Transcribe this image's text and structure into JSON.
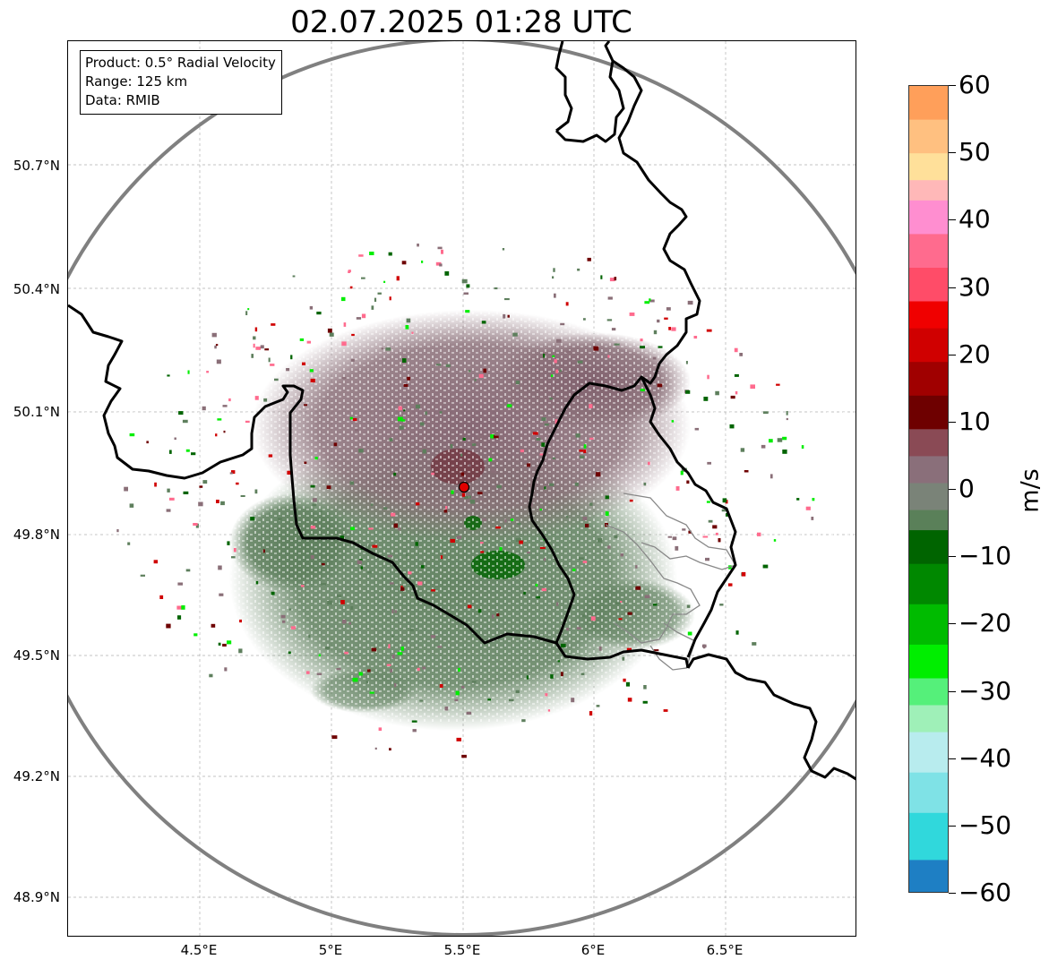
{
  "title": "02.07.2025 01:28 UTC",
  "info": {
    "product": "Product: 0.5° Radial Velocity",
    "range": "Range: 125 km",
    "source": "Data: RMIB"
  },
  "lat_labels": [
    "50.7°N",
    "50.4°N",
    "50.1°N",
    "49.8°N",
    "49.5°N",
    "49.2°N",
    "48.9°N"
  ],
  "lon_labels": [
    "4.5°E",
    "5°E",
    "5.5°E",
    "6°E",
    "6.5°E"
  ],
  "colorbar": {
    "unit": "m/s",
    "ticks": [
      "60",
      "50",
      "40",
      "30",
      "20",
      "10",
      "0",
      "−10",
      "−20",
      "−30",
      "−40",
      "−50",
      "−60"
    ],
    "min": -60,
    "max": 60,
    "stops": [
      {
        "v": 55,
        "c": "#ff9f5a"
      },
      {
        "v": 50,
        "c": "#ffc080"
      },
      {
        "v": 46,
        "c": "#ffe09a"
      },
      {
        "v": 43,
        "c": "#ffb8b8"
      },
      {
        "v": 38,
        "c": "#ff8ed0"
      },
      {
        "v": 33,
        "c": "#ff6b8e"
      },
      {
        "v": 28,
        "c": "#ff4c68"
      },
      {
        "v": 24,
        "c": "#f00000"
      },
      {
        "v": 19,
        "c": "#d00000"
      },
      {
        "v": 14,
        "c": "#a00000"
      },
      {
        "v": 9,
        "c": "#6e0000"
      },
      {
        "v": 5,
        "c": "#8a4a55"
      },
      {
        "v": 1,
        "c": "#8a6f7a"
      },
      {
        "v": -3,
        "c": "#7a8378"
      },
      {
        "v": -6,
        "c": "#5a8059"
      },
      {
        "v": -11,
        "c": "#006400"
      },
      {
        "v": -17,
        "c": "#008800"
      },
      {
        "v": -23,
        "c": "#00bb00"
      },
      {
        "v": -28,
        "c": "#00ee00"
      },
      {
        "v": -32,
        "c": "#55f07a"
      },
      {
        "v": -36,
        "c": "#9ff0b8"
      },
      {
        "v": -42,
        "c": "#b8ecee"
      },
      {
        "v": -48,
        "c": "#7fe2e6"
      },
      {
        "v": -55,
        "c": "#30d8dc"
      },
      {
        "v": -60,
        "c": "#1e7fc4"
      }
    ]
  },
  "radar": {
    "site_color": "#e00000",
    "approaching_color": "#5e7f5d",
    "receding_color": "#8a6f78",
    "range_ring_color": "#808080"
  }
}
